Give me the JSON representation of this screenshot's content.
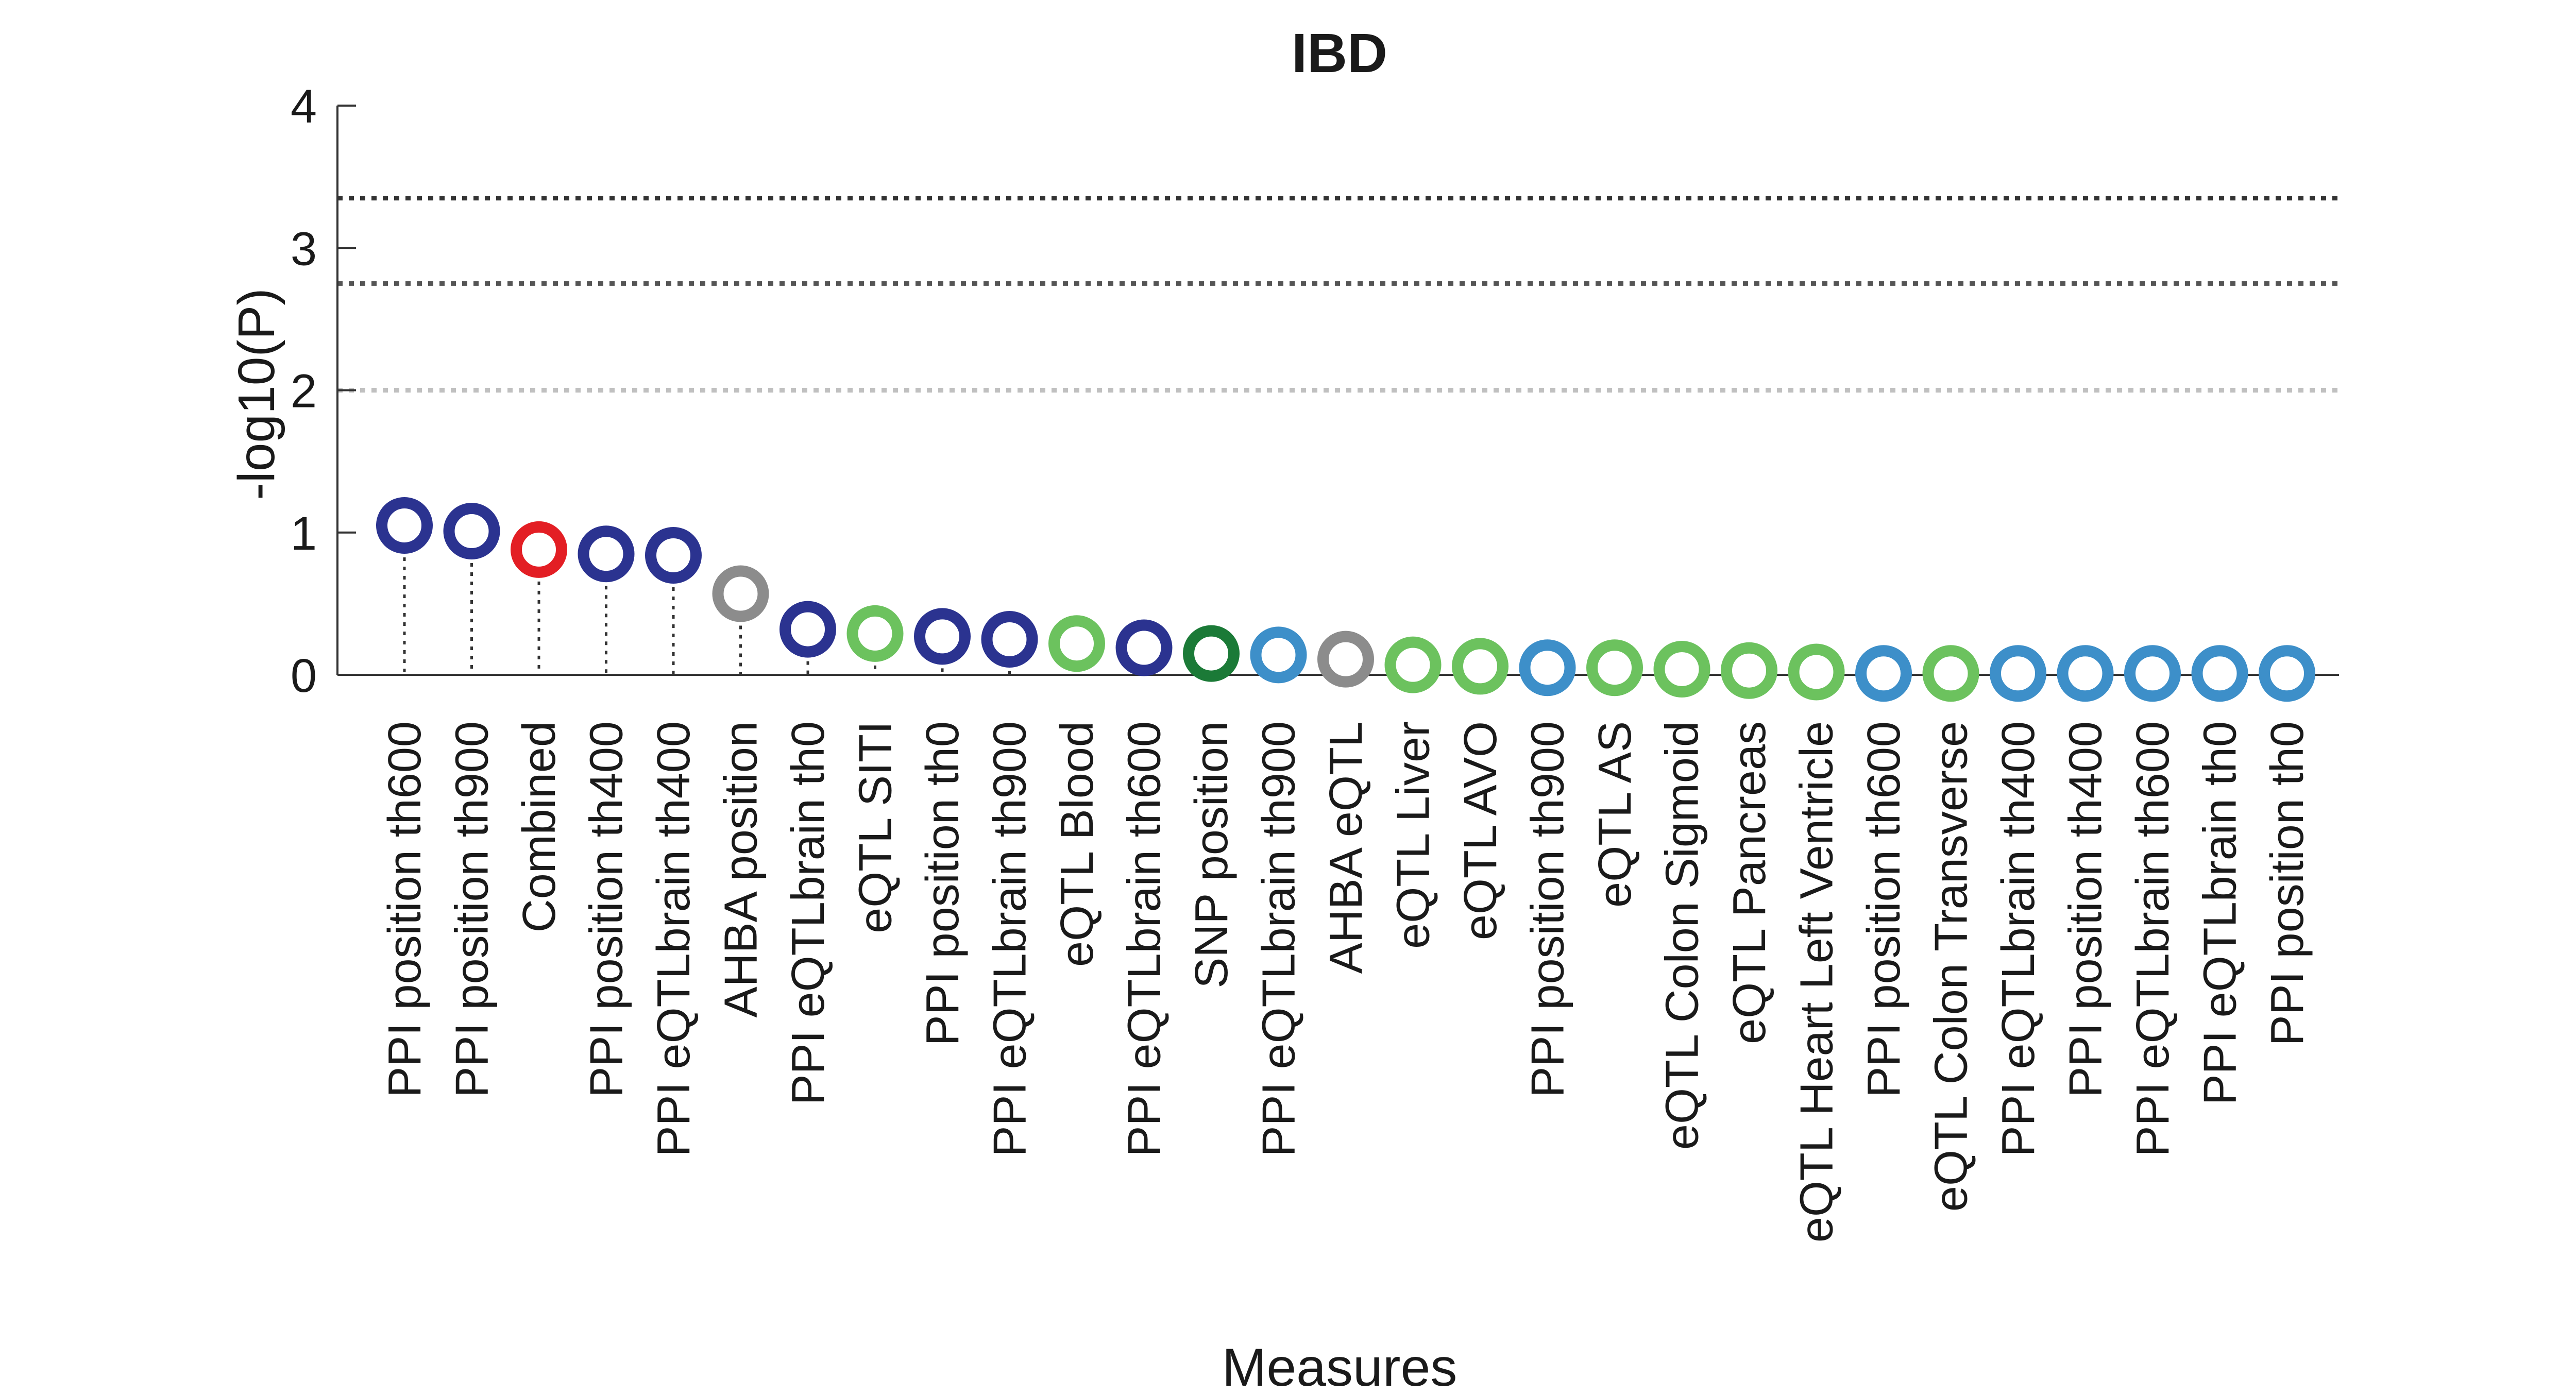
{
  "chart_data": {
    "type": "scatter",
    "title": "IBD",
    "xlabel": "Measures",
    "ylabel": "-log10(P)",
    "ylim": [
      0,
      4
    ],
    "yticks": [
      0,
      1,
      2,
      3,
      4
    ],
    "grid": false,
    "marker": "open-circle-stem",
    "thresholds": [
      {
        "value": 3.35,
        "color": "#333333"
      },
      {
        "value": 2.75,
        "color": "#555555"
      },
      {
        "value": 2.0,
        "color": "#c0c0c0"
      }
    ],
    "categories": [
      "PPI position th600",
      "PPI position th900",
      "Combined",
      "PPI position th400",
      "PPI eQTLbrain th400",
      "AHBA position",
      "PPI eQTLbrain th0",
      "eQTL SITI",
      "PPI position th0",
      "PPI eQTLbrain th900",
      "eQTL Blood",
      "PPI eQTLbrain th600",
      "SNP position",
      "PPI eQTLbrain th900",
      "AHBA eQTL",
      "eQTL Liver",
      "eQTL AVO",
      "PPI position th900",
      "eQTL AS",
      "eQTL Colon Sigmoid",
      "eQTL Pancreas",
      "eQTL Heart Left Ventricle",
      "PPI position th600",
      "eQTL Colon Transverse",
      "PPI eQTLbrain th400",
      "PPI position th400",
      "PPI eQTLbrain th600",
      "PPI eQTLbrain th0",
      "PPI position th0"
    ],
    "values": [
      1.05,
      1.01,
      0.88,
      0.85,
      0.84,
      0.57,
      0.32,
      0.29,
      0.27,
      0.25,
      0.22,
      0.19,
      0.15,
      0.14,
      0.11,
      0.07,
      0.06,
      0.05,
      0.05,
      0.04,
      0.03,
      0.02,
      0.01,
      0.01,
      0.01,
      0.01,
      0.01,
      0.01,
      0.01
    ],
    "colors": [
      "#2b3390",
      "#2b3390",
      "#e31e24",
      "#2b3390",
      "#2b3390",
      "#8c8c8c",
      "#2b3390",
      "#6cc25e",
      "#2b3390",
      "#2b3390",
      "#6cc25e",
      "#2b3390",
      "#1b7a37",
      "#3d8fc9",
      "#8c8c8c",
      "#6cc25e",
      "#6cc25e",
      "#3d8fc9",
      "#6cc25e",
      "#6cc25e",
      "#6cc25e",
      "#6cc25e",
      "#3d8fc9",
      "#6cc25e",
      "#3d8fc9",
      "#3d8fc9",
      "#3d8fc9",
      "#3d8fc9",
      "#3d8fc9"
    ]
  }
}
